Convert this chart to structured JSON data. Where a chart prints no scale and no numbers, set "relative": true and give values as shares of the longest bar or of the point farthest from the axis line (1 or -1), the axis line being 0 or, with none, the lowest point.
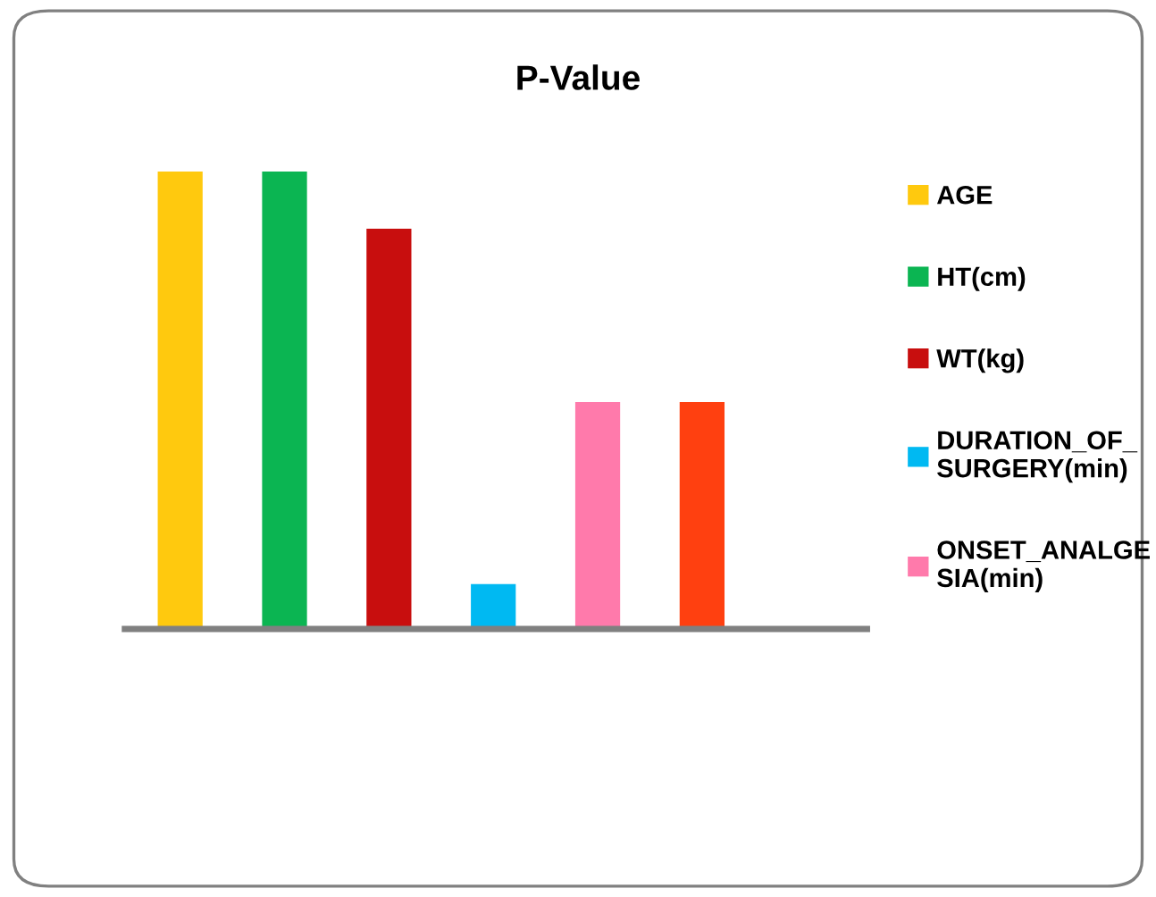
{
  "chart_data": {
    "type": "bar",
    "title": "P-Value",
    "relative": true,
    "stacked": true,
    "categories": [
      null,
      null,
      null,
      null,
      null,
      null
    ],
    "series": [
      {
        "name": "AGE",
        "color": "#ffc90e",
        "values": [
          1,
          null,
          null,
          null,
          null,
          null
        ]
      },
      {
        "name": "HT(cm)",
        "color": "#0bb552",
        "values": [
          null,
          1,
          null,
          null,
          null,
          null
        ]
      },
      {
        "name": "WT(kg)",
        "color": "#c80e0e",
        "values": [
          null,
          null,
          0.875,
          null,
          null,
          null
        ]
      },
      {
        "name": "DURATION_OF_\nSURGERY(min)",
        "color": "#00b9f2",
        "values": [
          null,
          null,
          null,
          0.098,
          null,
          null
        ]
      },
      {
        "name": "ONSET_ANALGE\nSIA(min)",
        "color": "#ff7aab",
        "values": [
          null,
          null,
          null,
          null,
          0.496,
          null
        ]
      },
      {
        "color": "#ff4010",
        "values": [
          null,
          null,
          null,
          null,
          null,
          0.496
        ]
      }
    ],
    "legend": "right",
    "grid": false
  }
}
